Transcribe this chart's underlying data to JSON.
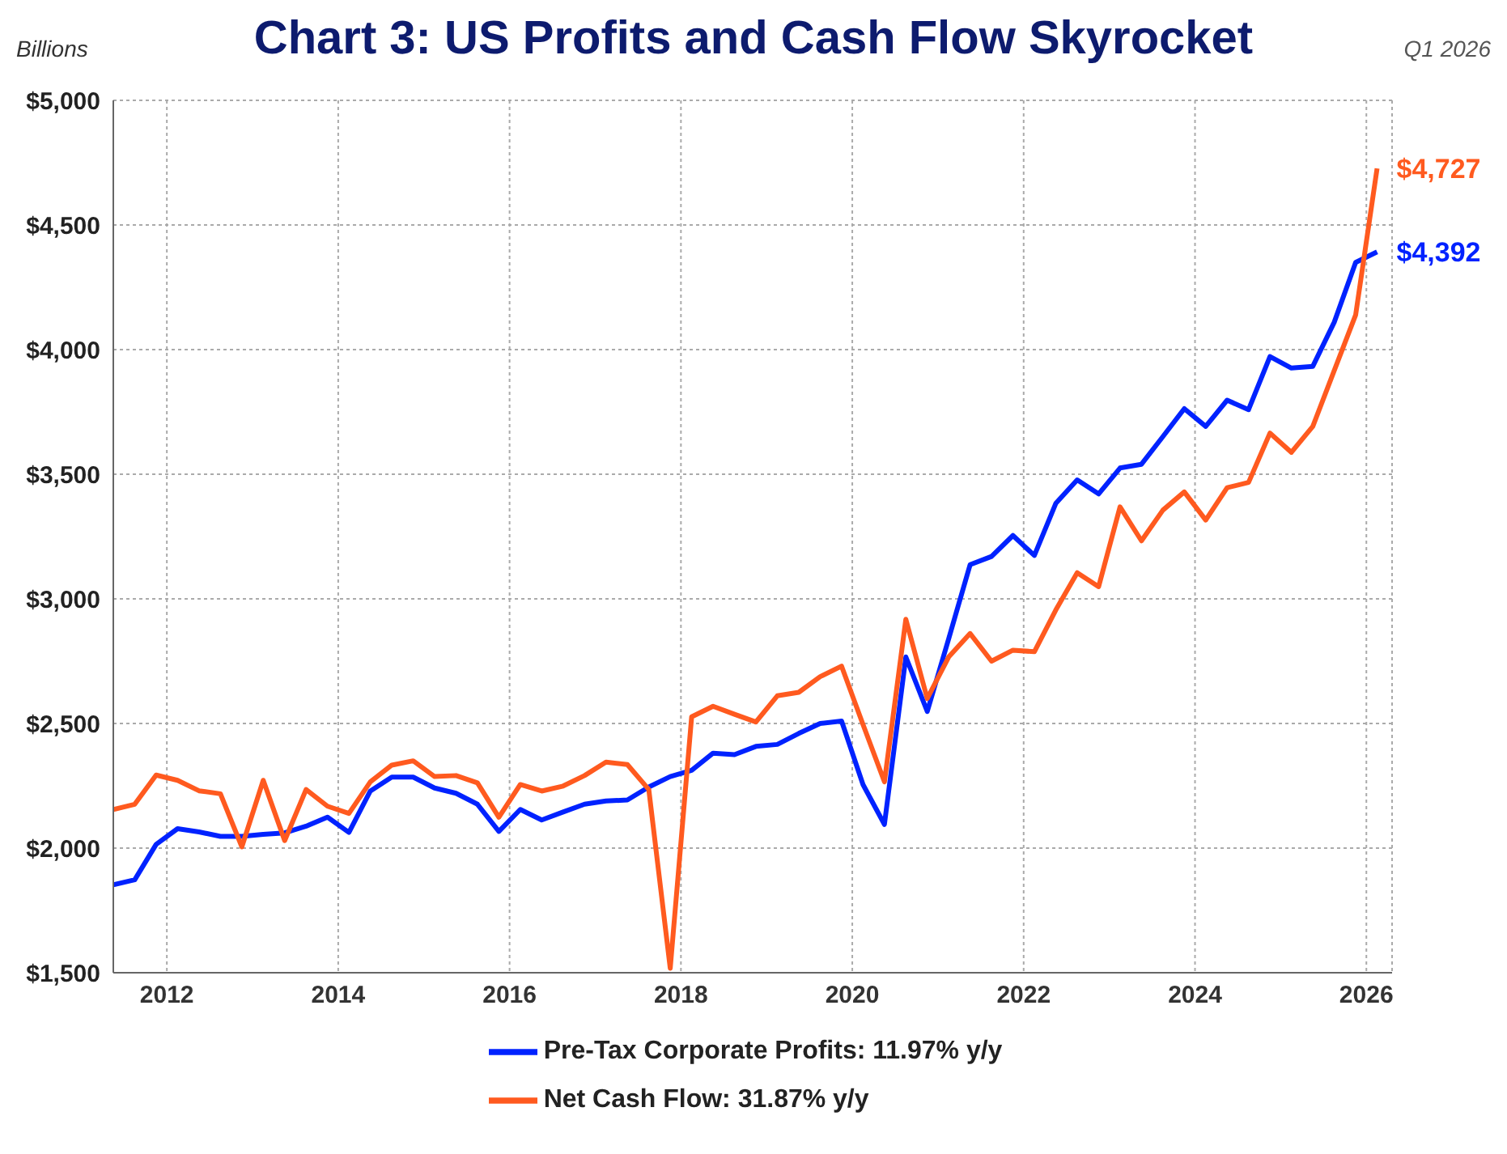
{
  "chart_data": {
    "type": "line",
    "title": "Chart 3: US Profits and Cash Flow Skyrocket",
    "ylabel": "Billions",
    "annotations": [
      "Q1 2026",
      {
        "text": "$4,727",
        "x": 2026.125,
        "y": 4727
      },
      {
        "text": "$4,392",
        "x": 2026.125,
        "y": 4392
      }
    ],
    "x": [
      2011.375,
      2011.625,
      2011.875,
      2012.125,
      2012.375,
      2012.625,
      2012.875,
      2013.125,
      2013.375,
      2013.625,
      2013.875,
      2014.125,
      2014.375,
      2014.625,
      2014.875,
      2015.125,
      2015.375,
      2015.625,
      2015.875,
      2016.125,
      2016.375,
      2016.625,
      2016.875,
      2017.125,
      2017.375,
      2017.625,
      2017.875,
      2018.125,
      2018.375,
      2018.625,
      2018.875,
      2019.125,
      2019.375,
      2019.625,
      2019.875,
      2020.125,
      2020.375,
      2020.625,
      2020.875,
      2021.125,
      2021.375,
      2021.625,
      2021.875,
      2022.125,
      2022.375,
      2022.625,
      2022.875,
      2023.125,
      2023.375,
      2023.625,
      2023.875,
      2024.125,
      2024.375,
      2024.625,
      2024.875,
      2025.125,
      2025.375,
      2025.625,
      2025.875,
      2026.125
    ],
    "series": [
      {
        "name": "Pre-Tax Corporate Profits: 11.97% y/y",
        "color": "#0022ff",
        "values": [
          1853,
          1873,
          2015,
          2078,
          2065,
          2047,
          2047,
          2055,
          2061,
          2088,
          2124,
          2063,
          2229,
          2285,
          2285,
          2241,
          2220,
          2176,
          2067,
          2155,
          2113,
          2145,
          2176,
          2189,
          2193,
          2245,
          2287,
          2312,
          2381,
          2375,
          2408,
          2416,
          2460,
          2500,
          2510,
          2255,
          2095,
          2767,
          2548,
          2840,
          3137,
          3170,
          3254,
          3174,
          3383,
          3477,
          3421,
          3525,
          3540,
          3651,
          3763,
          3692,
          3797,
          3759,
          3972,
          3926,
          3933,
          4110,
          4350,
          4392
        ]
      },
      {
        "name": "Net Cash Flow: 31.87% y/y",
        "color": "#ff5a1f",
        "values": [
          2155,
          2176,
          2293,
          2272,
          2230,
          2218,
          2005,
          2272,
          2030,
          2235,
          2168,
          2139,
          2266,
          2333,
          2350,
          2287,
          2291,
          2262,
          2124,
          2255,
          2229,
          2249,
          2291,
          2345,
          2335,
          2235,
          1518,
          2527,
          2569,
          2537,
          2506,
          2611,
          2625,
          2688,
          2730,
          2496,
          2266,
          2918,
          2600,
          2767,
          2861,
          2750,
          2794,
          2788,
          2955,
          3105,
          3049,
          3369,
          3233,
          3356,
          3429,
          3316,
          3446,
          3467,
          3665,
          3588,
          3692,
          3916,
          4139,
          4727
        ]
      }
    ],
    "xlim": [
      2011.375,
      2026.3
    ],
    "xticks": [
      2012,
      2014,
      2016,
      2018,
      2020,
      2022,
      2024,
      2026
    ],
    "ylim": [
      1500,
      5000
    ],
    "yticks": [
      {
        "value": 1500,
        "label": "$1,500"
      },
      {
        "value": 2000,
        "label": "$2,000"
      },
      {
        "value": 2500,
        "label": "$2,500"
      },
      {
        "value": 3000,
        "label": "$3,000"
      },
      {
        "value": 3500,
        "label": "$3,500"
      },
      {
        "value": 4000,
        "label": "$4,000"
      },
      {
        "value": 4500,
        "label": "$4,500"
      },
      {
        "value": 5000,
        "label": "$5,000"
      }
    ],
    "grid": true,
    "legend": "bottom",
    "marker": "none",
    "line_style": "solid"
  }
}
